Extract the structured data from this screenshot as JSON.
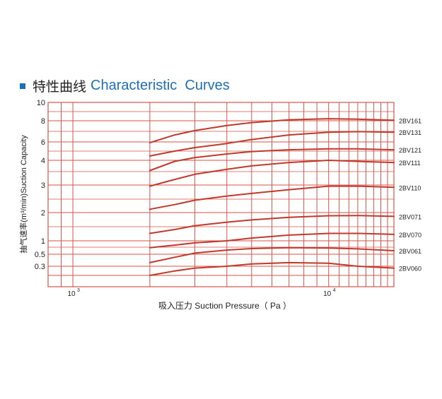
{
  "header": {
    "title_cn": "特性曲线",
    "title_en": "Characteristic  Curves",
    "accent_color": "#1f6fb5"
  },
  "chart_data": {
    "type": "line",
    "xlabel": "吸入压力 Suction Pressure（ Pa ）",
    "ylabel": "抽气速率(m³/min)Suction Capacity",
    "x_scale": "log",
    "xlim": [
      800,
      18000
    ],
    "x_ticks": [
      {
        "value": 1000,
        "base": "10",
        "exp": "3"
      },
      {
        "value": 10000,
        "base": "10",
        "exp": "4"
      }
    ],
    "y_ticks": [
      {
        "value": 0.3,
        "label": "0.3"
      },
      {
        "value": 0.5,
        "label": "0.5"
      },
      {
        "value": 1,
        "label": "1"
      },
      {
        "value": 2,
        "label": "2"
      },
      {
        "value": 3,
        "label": "3"
      },
      {
        "value": 4,
        "label": "4"
      },
      {
        "value": 6,
        "label": "6"
      },
      {
        "value": 8,
        "label": "8"
      },
      {
        "value": 10,
        "label": "10"
      }
    ],
    "grid": true,
    "grid_color": "#d9534a",
    "curve_color": "#c0392b",
    "series": [
      {
        "name": "2BV161",
        "x": [
          2000,
          2500,
          3000,
          4000,
          5000,
          7000,
          10000,
          13000,
          18000
        ],
        "y": [
          5.9,
          6.6,
          7.0,
          7.5,
          7.8,
          8.1,
          8.2,
          8.15,
          8.05
        ]
      },
      {
        "name": "2BV131",
        "x": [
          2000,
          2500,
          3000,
          4000,
          5000,
          7000,
          10000,
          13000,
          18000
        ],
        "y": [
          4.4,
          4.9,
          5.3,
          5.8,
          6.2,
          6.6,
          6.85,
          6.9,
          6.85
        ]
      },
      {
        "name": "2BV121",
        "x": [
          2000,
          2500,
          3000,
          4000,
          5000,
          7000,
          10000,
          13000,
          18000
        ],
        "y": [
          3.55,
          3.95,
          4.25,
          4.6,
          4.85,
          5.05,
          5.15,
          5.15,
          5.05
        ]
      },
      {
        "name": "2BV111",
        "x": [
          2000,
          2500,
          3000,
          4000,
          5000,
          7000,
          10000,
          13000,
          18000
        ],
        "y": [
          2.95,
          3.2,
          3.4,
          3.6,
          3.75,
          3.9,
          4.0,
          3.95,
          3.9
        ]
      },
      {
        "name": "2BV110",
        "x": [
          2000,
          2500,
          3000,
          4000,
          5000,
          7000,
          10000,
          13000,
          18000
        ],
        "y": [
          2.1,
          2.25,
          2.4,
          2.55,
          2.65,
          2.8,
          2.95,
          2.95,
          2.9
        ]
      },
      {
        "name": "2BV071",
        "x": [
          2000,
          2500,
          3000,
          4000,
          5000,
          7000,
          10000,
          13000,
          18000
        ],
        "y": [
          1.2,
          1.32,
          1.45,
          1.58,
          1.67,
          1.78,
          1.85,
          1.86,
          1.82
        ]
      },
      {
        "name": "2BV070",
        "x": [
          2000,
          2500,
          3000,
          4000,
          5000,
          7000,
          10000,
          13000,
          18000
        ],
        "y": [
          0.7,
          0.8,
          0.9,
          1.0,
          1.07,
          1.15,
          1.2,
          1.2,
          1.17
        ]
      },
      {
        "name": "2BV061",
        "x": [
          2000,
          2500,
          3000,
          4000,
          5000,
          7000,
          10000,
          13000,
          18000
        ],
        "y": [
          0.35,
          0.44,
          0.53,
          0.62,
          0.67,
          0.7,
          0.69,
          0.66,
          0.6
        ]
      },
      {
        "name": "2BV060",
        "x": [
          2000,
          2500,
          3000,
          4000,
          5000,
          7000,
          10000,
          13000,
          18000
        ],
        "y": [
          0.1,
          0.17,
          0.24,
          0.3,
          0.33,
          0.35,
          0.34,
          0.3,
          0.24
        ]
      }
    ]
  }
}
